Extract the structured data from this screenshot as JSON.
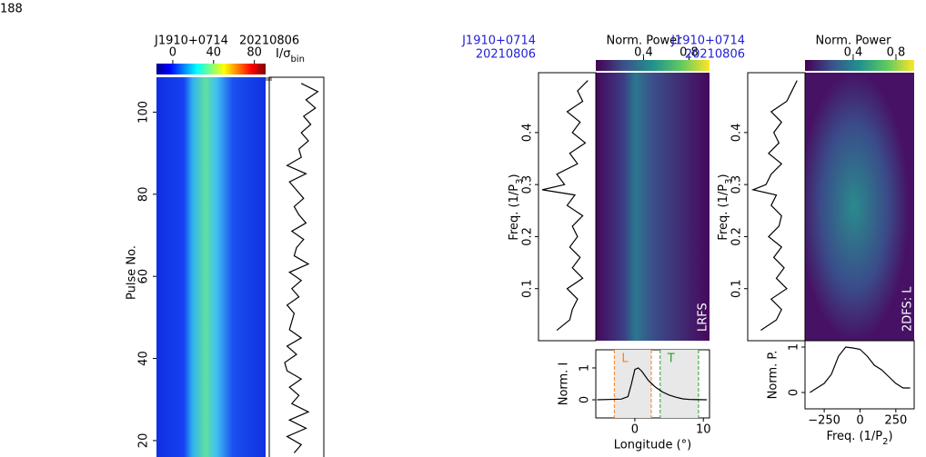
{
  "page_number": "188",
  "chart_data": [
    {
      "type": "pulse-stack",
      "source": "J1910+0714",
      "date": "20210806",
      "colorbar_lim": [
        -16,
        91
      ],
      "colorbar_ticks": [
        0,
        40,
        80
      ],
      "colorbar_label": {
        "main": "I/σ",
        "sub": "bin"
      },
      "ylabel": "Pulse No.",
      "ylim": [
        16,
        108.5
      ],
      "yticks": [
        20,
        40,
        60,
        80,
        100
      ],
      "profile": {
        "pulse": [
          17,
          19,
          21,
          23,
          25,
          27,
          29,
          31,
          33,
          35,
          37,
          39,
          41,
          43,
          45,
          47,
          49,
          51,
          53,
          55,
          57,
          59,
          61,
          63,
          65,
          67,
          69,
          71,
          73,
          75,
          77,
          79,
          81,
          83,
          85,
          87,
          89,
          91,
          93,
          95,
          97,
          99,
          101,
          103,
          105,
          107
        ],
        "values": [
          0.45,
          0.6,
          0.3,
          0.7,
          0.35,
          0.75,
          0.4,
          0.55,
          0.35,
          0.6,
          0.3,
          0.25,
          0.5,
          0.3,
          0.6,
          0.35,
          0.4,
          0.45,
          0.3,
          0.55,
          0.4,
          0.6,
          0.35,
          0.75,
          0.45,
          0.5,
          0.65,
          0.4,
          0.7,
          0.55,
          0.45,
          0.65,
          0.5,
          0.35,
          0.7,
          0.3,
          0.6,
          0.55,
          0.75,
          0.6,
          0.8,
          0.65,
          0.9,
          0.7,
          0.95,
          0.6
        ]
      }
    },
    {
      "type": "lrfs",
      "source": "J1910+0714",
      "date": "20210806",
      "colorbar_title": "Norm. Power",
      "colorbar_lim": [
        -0.02,
        0.98
      ],
      "colorbar_ticks": [
        0.4,
        0.8
      ],
      "ylabel": {
        "main": "Freq. (1/P",
        "sub": "3",
        "end": ")"
      },
      "ylim": [
        0,
        0.515
      ],
      "yticks": [
        0.1,
        0.2,
        0.3,
        0.4
      ],
      "panel_label": "LRFS",
      "profile": {
        "freq": [
          0.02,
          0.04,
          0.06,
          0.08,
          0.1,
          0.12,
          0.14,
          0.16,
          0.18,
          0.2,
          0.22,
          0.24,
          0.26,
          0.28,
          0.29,
          0.3,
          0.32,
          0.34,
          0.36,
          0.38,
          0.4,
          0.42,
          0.44,
          0.46,
          0.48,
          0.5
        ],
        "values": [
          0.3,
          0.55,
          0.6,
          0.7,
          0.5,
          0.8,
          0.6,
          0.75,
          0.55,
          0.7,
          0.6,
          0.8,
          0.5,
          0.65,
          0.02,
          0.45,
          0.3,
          0.7,
          0.55,
          0.85,
          0.6,
          0.75,
          0.5,
          0.8,
          0.7,
          0.9
        ]
      },
      "bottom": {
        "ylabel": "Norm. I",
        "ylim": [
          -0.57,
          1.57
        ],
        "yticks": [
          0,
          1
        ],
        "xlim": [
          -5.7,
          10.9
        ],
        "xticks": [
          0,
          10
        ],
        "xlabel": "Longitude (°)",
        "x": [
          -5.5,
          -2,
          -1,
          -0.5,
          0,
          0.5,
          1,
          2,
          3,
          4,
          5,
          6,
          7,
          8,
          10.5
        ],
        "values": [
          0,
          0.02,
          0.1,
          0.5,
          0.95,
          1,
          0.9,
          0.6,
          0.4,
          0.25,
          0.15,
          0.08,
          0.03,
          0.01,
          0
        ],
        "regions": [
          {
            "label": "L",
            "range": [
              -3,
              2.4
            ],
            "color": "#ff7f0e"
          },
          {
            "label": "T",
            "range": [
              3.7,
              9.3
            ],
            "color": "#2ca02c"
          }
        ]
      }
    },
    {
      "type": "2dfs",
      "source": "J1910+0714",
      "date": "20210806",
      "colorbar_title": "Norm. Power",
      "colorbar_lim": [
        -0.05,
        0.97
      ],
      "colorbar_ticks": [
        0.4,
        0.8
      ],
      "ylabel": {
        "main": "Freq. (1/P",
        "sub": "3",
        "end": ")"
      },
      "ylim": [
        0,
        0.515
      ],
      "yticks": [
        0.1,
        0.2,
        0.3,
        0.4
      ],
      "panel_label": "2DFS: L",
      "profile": {
        "freq": [
          0.02,
          0.04,
          0.06,
          0.08,
          0.1,
          0.12,
          0.14,
          0.16,
          0.18,
          0.2,
          0.22,
          0.24,
          0.26,
          0.28,
          0.29,
          0.3,
          0.32,
          0.34,
          0.36,
          0.38,
          0.4,
          0.42,
          0.44,
          0.46,
          0.48,
          0.5
        ],
        "values": [
          0.2,
          0.5,
          0.6,
          0.4,
          0.7,
          0.5,
          0.65,
          0.45,
          0.6,
          0.35,
          0.55,
          0.6,
          0.4,
          0.5,
          0.05,
          0.3,
          0.4,
          0.6,
          0.35,
          0.55,
          0.45,
          0.6,
          0.4,
          0.7,
          0.8,
          0.9
        ]
      },
      "bottom": {
        "ylabel": "Norm. P.",
        "ylim": [
          -0.36,
          1.14
        ],
        "yticks": [
          0,
          1
        ],
        "xlim": [
          -384,
          378
        ],
        "xticks": [
          {
            "value": -250,
            "label": "−250"
          },
          0,
          250
        ],
        "xlabel": {
          "main": "Freq. (1/P",
          "sub": "2",
          "end": ")"
        },
        "x": [
          -350,
          -300,
          -250,
          -200,
          -150,
          -100,
          -50,
          0,
          50,
          100,
          150,
          200,
          250,
          300,
          350
        ],
        "values": [
          0,
          0.1,
          0.2,
          0.4,
          0.8,
          1,
          0.98,
          0.95,
          0.8,
          0.6,
          0.5,
          0.35,
          0.2,
          0.1,
          0.1
        ]
      }
    }
  ]
}
